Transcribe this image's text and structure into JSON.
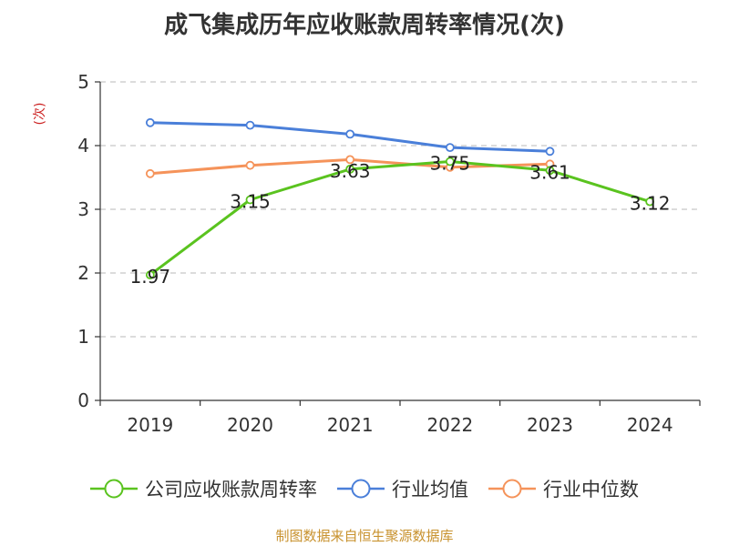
{
  "chart_data": {
    "type": "line",
    "title": "成飞集成历年应收账款周转率情况(次)",
    "ylabel": "(次)",
    "xlabel": "",
    "categories": [
      "2019",
      "2020",
      "2021",
      "2022",
      "2023",
      "2024"
    ],
    "ylim": [
      0,
      5
    ],
    "yticks": [
      0,
      1,
      2,
      3,
      4,
      5
    ],
    "grid": true,
    "legend_position": "bottom",
    "series": [
      {
        "name": "公司应收账款周转率",
        "color": "#5ac31f",
        "values": [
          1.97,
          3.15,
          3.63,
          3.75,
          3.61,
          3.12
        ],
        "labels": [
          "1.97",
          "3.15",
          "3.63",
          "3.75",
          "3.61",
          "3.12"
        ]
      },
      {
        "name": "行业均值",
        "color": "#4a7fd9",
        "values": [
          4.36,
          4.32,
          4.18,
          3.97,
          3.91,
          null
        ]
      },
      {
        "name": "行业中位数",
        "color": "#f5935a",
        "values": [
          3.56,
          3.69,
          3.78,
          3.66,
          3.71,
          null
        ]
      }
    ]
  },
  "source_text": "制图数据来自恒生聚源数据库",
  "colors": {
    "source": "#c8922e",
    "y_unit": "#cc2222",
    "axis": "#333333",
    "grid": "#c8c8c8"
  }
}
